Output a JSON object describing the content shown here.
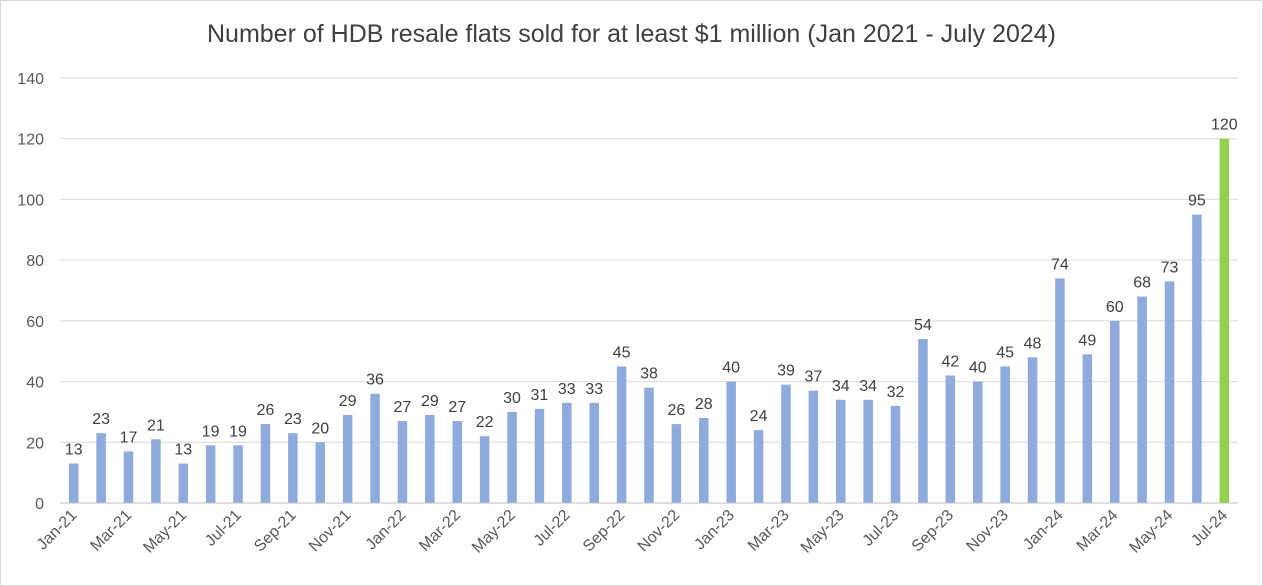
{
  "chart_data": {
    "type": "bar",
    "title": "Number of HDB resale flats sold for at least $1 million (Jan 2021 -  July 2024)",
    "xlabel": "",
    "ylabel": "",
    "ylim": [
      0,
      140
    ],
    "yticks": [
      0,
      20,
      40,
      60,
      80,
      100,
      120,
      140
    ],
    "grid": true,
    "legend": "none",
    "categories": [
      "Jan-21",
      "Feb-21",
      "Mar-21",
      "Apr-21",
      "May-21",
      "Jun-21",
      "Jul-21",
      "Aug-21",
      "Sep-21",
      "Oct-21",
      "Nov-21",
      "Dec-21",
      "Jan-22",
      "Feb-22",
      "Mar-22",
      "Apr-22",
      "May-22",
      "Jun-22",
      "Jul-22",
      "Aug-22",
      "Sep-22",
      "Oct-22",
      "Nov-22",
      "Dec-22",
      "Jan-23",
      "Feb-23",
      "Mar-23",
      "Apr-23",
      "May-23",
      "Jun-23",
      "Jul-23",
      "Aug-23",
      "Sep-23",
      "Oct-23",
      "Nov-23",
      "Dec-23",
      "Jan-24",
      "Feb-24",
      "Mar-24",
      "Apr-24",
      "May-24",
      "Jun-24",
      "Jul-24"
    ],
    "visible_tick_labels": [
      "Jan-21",
      "Mar-21",
      "May-21",
      "Jul-21",
      "Sep-21",
      "Nov-21",
      "Jan-22",
      "Mar-22",
      "May-22",
      "Jul-22",
      "Sep-22",
      "Nov-22",
      "Jan-23",
      "Mar-23",
      "May-23",
      "Jul-23",
      "Sep-23",
      "Nov-23",
      "Jan-24",
      "Mar-24",
      "May-24",
      "Jul-24"
    ],
    "values": [
      13,
      23,
      17,
      21,
      13,
      19,
      19,
      26,
      23,
      20,
      29,
      36,
      27,
      29,
      27,
      22,
      30,
      31,
      33,
      33,
      45,
      38,
      26,
      28,
      40,
      24,
      39,
      37,
      34,
      34,
      32,
      54,
      42,
      40,
      45,
      48,
      74,
      49,
      60,
      68,
      73,
      95,
      120
    ],
    "colors": {
      "bar": "#8faadc",
      "highlight_bar": "#92d050",
      "grid": "#d9d9d9",
      "axis": "#bfbfbf",
      "text": "#595959"
    },
    "highlight_index": 42
  }
}
